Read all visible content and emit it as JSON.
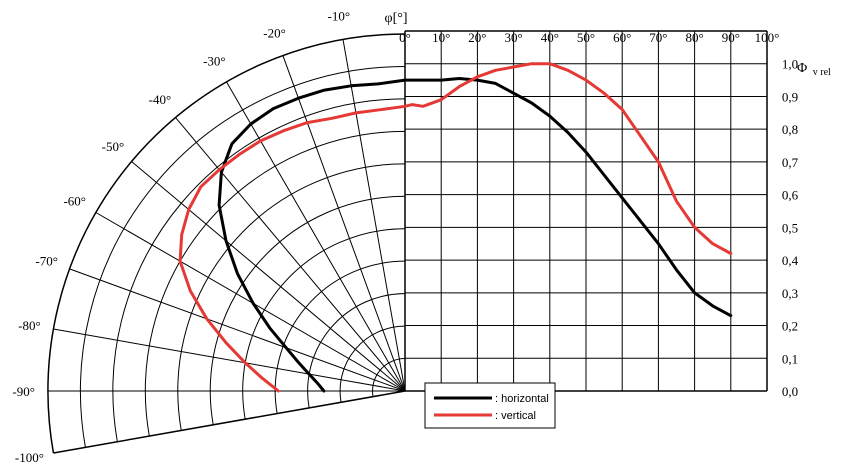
{
  "chart_data": {
    "type": "line",
    "title": "",
    "angle_label": "φ[°]",
    "value_label_main": "Φ",
    "value_label_sub": "v rel",
    "cartesian_x_ticks": [
      "0°",
      "10°",
      "20°",
      "30°",
      "40°",
      "50°",
      "60°",
      "70°",
      "80°",
      "90°",
      "100°"
    ],
    "polar_angle_ticks": [
      "-10°",
      "-20°",
      "-30°",
      "-40°",
      "-50°",
      "-60°",
      "-70°",
      "-80°",
      "-90°",
      "-100°"
    ],
    "y_ticks": [
      "0,0",
      "0,1",
      "0,2",
      "0,3",
      "0,4",
      "0,5",
      "0,6",
      "0,7",
      "0,8",
      "0,9",
      "1,0"
    ],
    "xlim": [
      0,
      100
    ],
    "ylim": [
      0,
      1.1
    ],
    "grid": true,
    "legend_position": "bottom-center",
    "series": [
      {
        "name": ": horizontal",
        "color": "#000000",
        "polar_points": [
          [
            -90,
            0.25
          ],
          [
            -85,
            0.27
          ],
          [
            -80,
            0.3
          ],
          [
            -75,
            0.34
          ],
          [
            -70,
            0.39
          ],
          [
            -65,
            0.46
          ],
          [
            -60,
            0.54
          ],
          [
            -55,
            0.63
          ],
          [
            -50,
            0.72
          ],
          [
            -45,
            0.81
          ],
          [
            -40,
            0.88
          ],
          [
            -35,
            0.93
          ],
          [
            -30,
            0.95
          ],
          [
            -25,
            0.96
          ],
          [
            -20,
            0.96
          ],
          [
            -15,
            0.96
          ],
          [
            -10,
            0.955
          ],
          [
            -5,
            0.95
          ]
        ],
        "cartesian_points": [
          [
            0,
            0.95
          ],
          [
            5,
            0.95
          ],
          [
            10,
            0.95
          ],
          [
            15,
            0.955
          ],
          [
            20,
            0.95
          ],
          [
            25,
            0.94
          ],
          [
            30,
            0.91
          ],
          [
            35,
            0.88
          ],
          [
            40,
            0.84
          ],
          [
            45,
            0.79
          ],
          [
            50,
            0.73
          ],
          [
            55,
            0.66
          ],
          [
            60,
            0.59
          ],
          [
            65,
            0.52
          ],
          [
            70,
            0.45
          ],
          [
            75,
            0.37
          ],
          [
            80,
            0.3
          ],
          [
            85,
            0.26
          ],
          [
            90,
            0.23
          ]
        ]
      },
      {
        "name": ": vertical",
        "color": "#e53935",
        "polar_points": [
          [
            -90,
            0.39
          ],
          [
            -85,
            0.44
          ],
          [
            -80,
            0.5
          ],
          [
            -75,
            0.57
          ],
          [
            -70,
            0.65
          ],
          [
            -65,
            0.73
          ],
          [
            -60,
            0.8
          ],
          [
            -55,
            0.84
          ],
          [
            -50,
            0.87
          ],
          [
            -45,
            0.89
          ],
          [
            -40,
            0.89
          ],
          [
            -35,
            0.89
          ],
          [
            -30,
            0.89
          ],
          [
            -25,
            0.885
          ],
          [
            -20,
            0.88
          ],
          [
            -15,
            0.87
          ],
          [
            -10,
            0.87
          ],
          [
            -5,
            0.87
          ]
        ],
        "cartesian_points": [
          [
            0,
            0.87
          ],
          [
            2,
            0.875
          ],
          [
            5,
            0.87
          ],
          [
            10,
            0.89
          ],
          [
            15,
            0.93
          ],
          [
            20,
            0.96
          ],
          [
            25,
            0.98
          ],
          [
            30,
            0.99
          ],
          [
            35,
            1.0
          ],
          [
            40,
            1.0
          ],
          [
            45,
            0.98
          ],
          [
            50,
            0.95
          ],
          [
            55,
            0.91
          ],
          [
            60,
            0.86
          ],
          [
            65,
            0.78
          ],
          [
            70,
            0.7
          ],
          [
            75,
            0.58
          ],
          [
            80,
            0.5
          ],
          [
            85,
            0.45
          ],
          [
            90,
            0.42
          ]
        ]
      }
    ]
  }
}
